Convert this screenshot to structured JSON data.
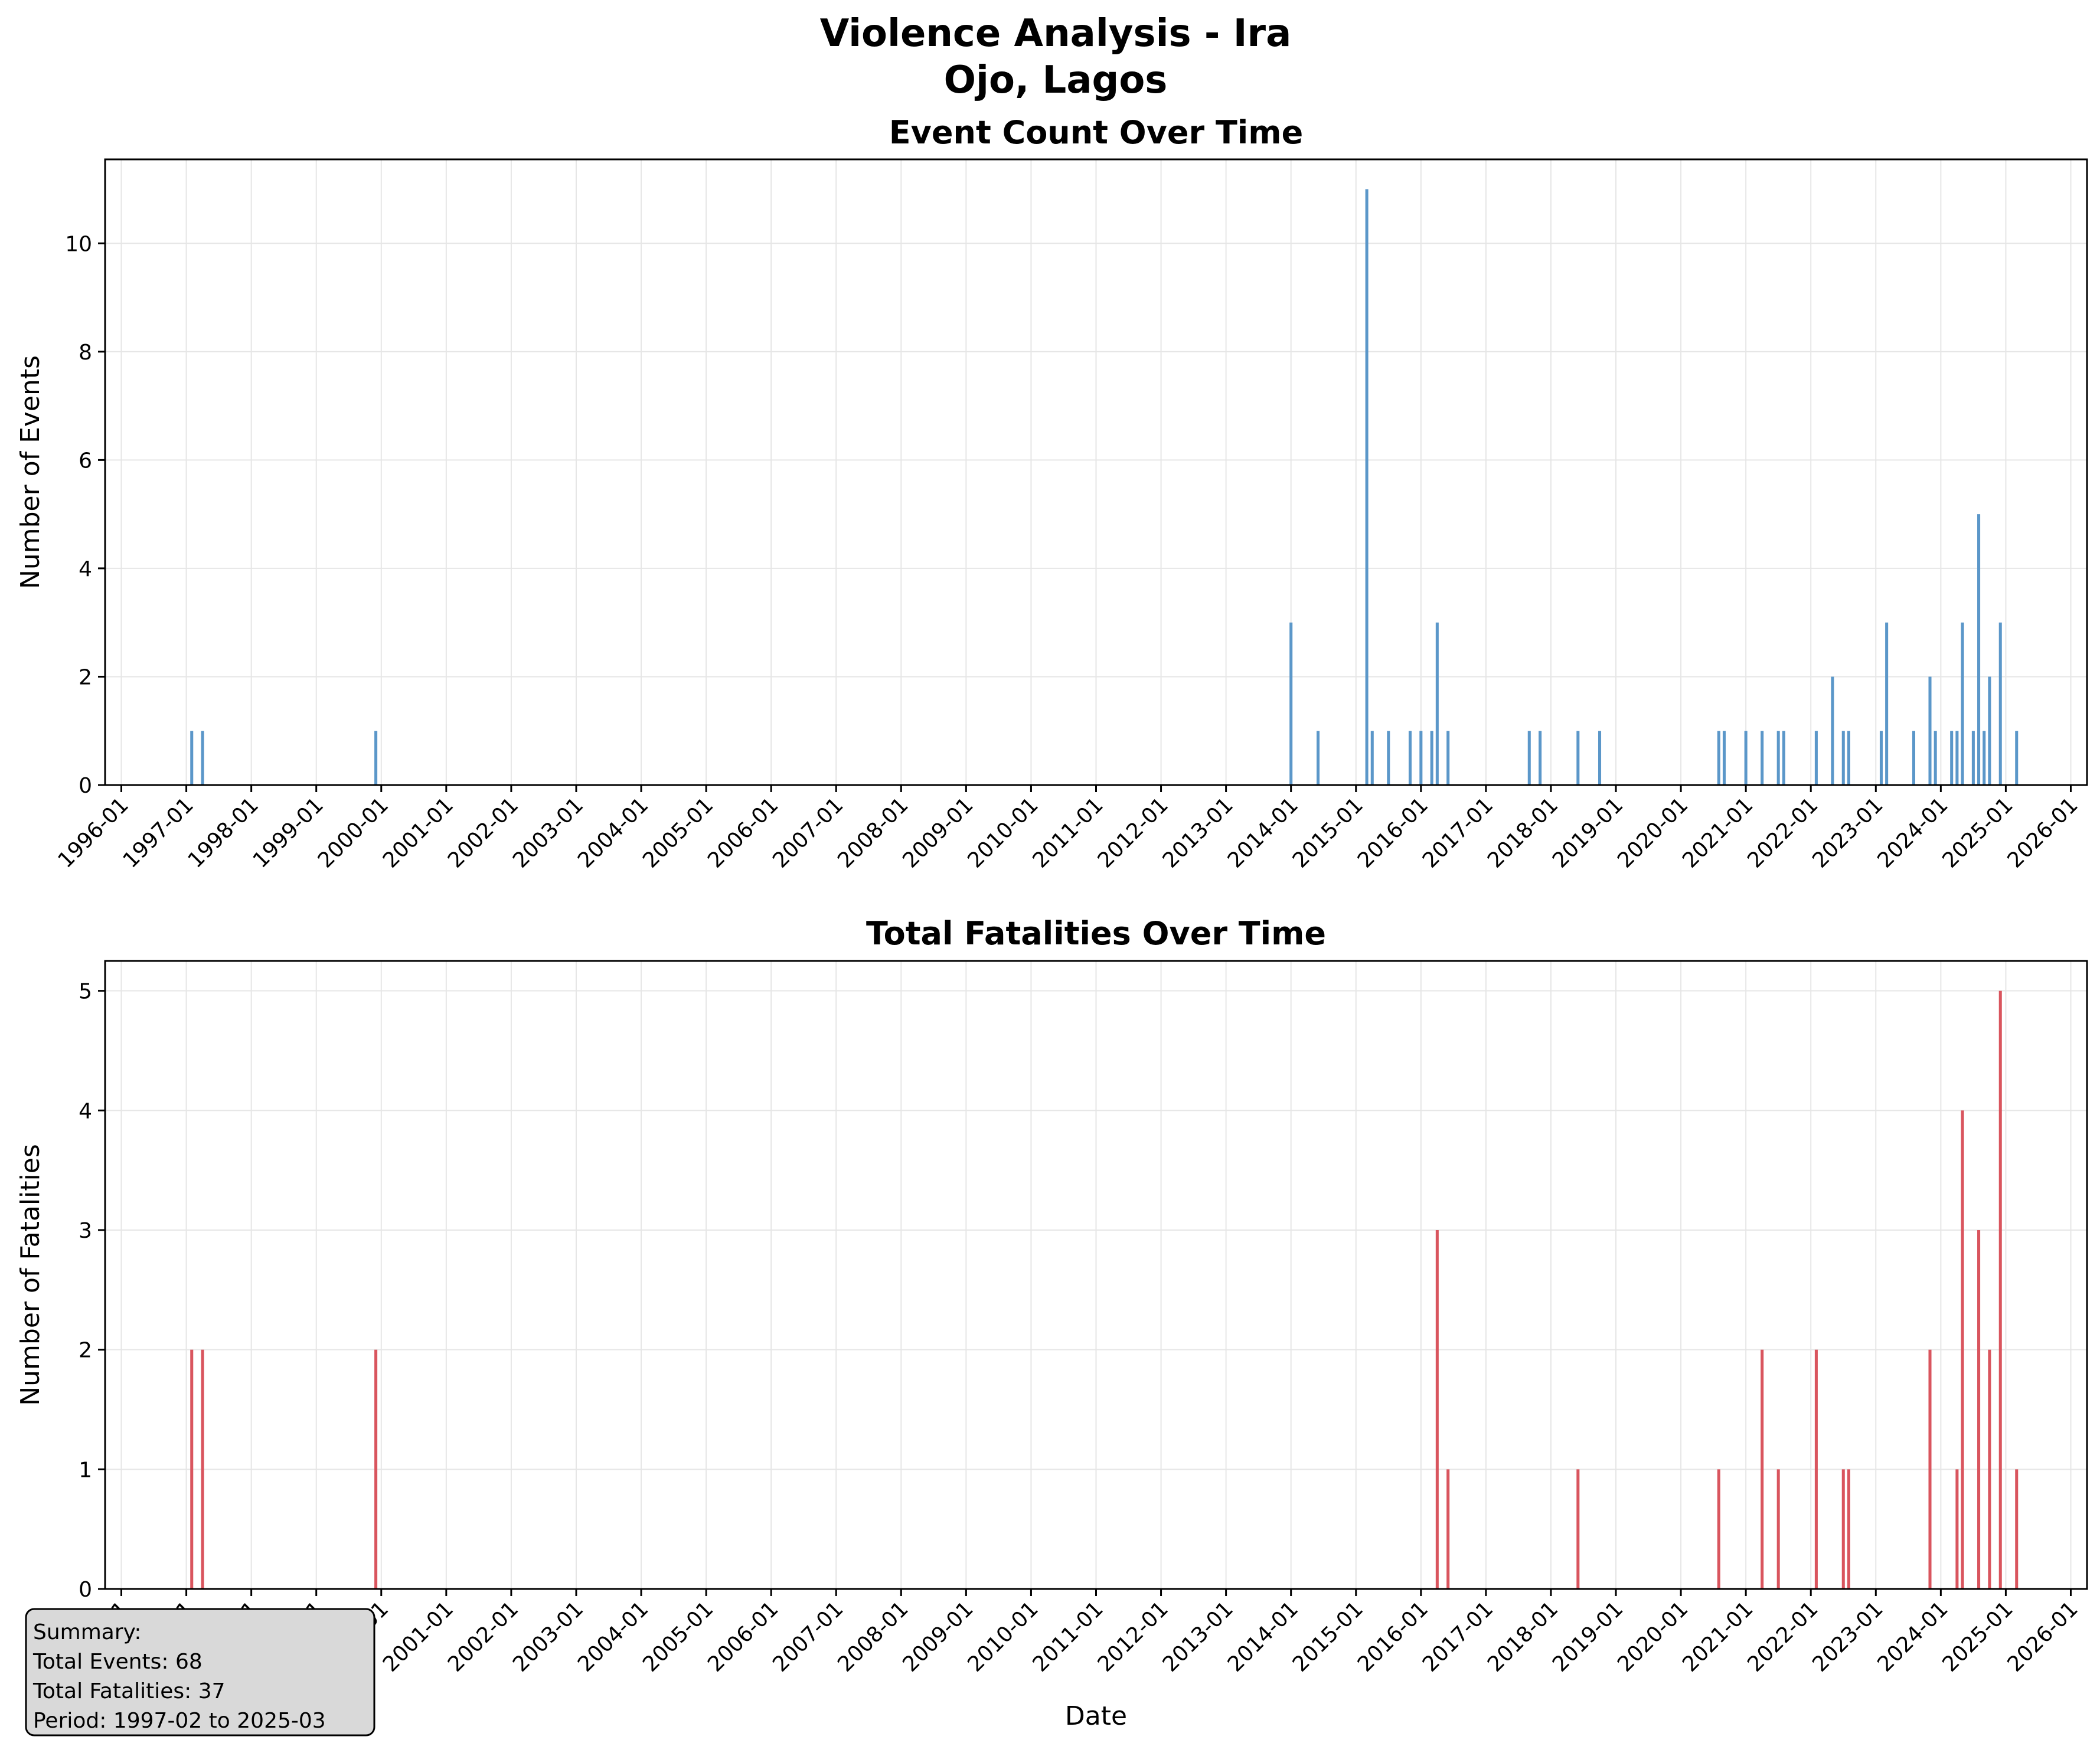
{
  "figure": {
    "title_line1": "Violence Analysis - Ira",
    "title_line2": "Ojo, Lagos"
  },
  "summary": {
    "line1": "Summary:",
    "line2": "Total Events: 68",
    "line3": "Total Fatalities: 37",
    "line4": "Period: 1997-02 to 2025-03"
  },
  "colors": {
    "events_bar": "#5b97c9",
    "fatalities_bar": "#d9555e",
    "grid": "#e6e6e6",
    "summary_box_fill": "#d9d9d9"
  },
  "chart_data": [
    {
      "type": "bar",
      "title": "Event Count Over Time",
      "xlabel": "",
      "ylabel": "Number of Events",
      "x_axis": "date",
      "xlim": [
        "1995-10",
        "2026-04"
      ],
      "ylim": [
        0,
        11.55
      ],
      "yticks": [
        0,
        2,
        4,
        6,
        8,
        10
      ],
      "xtick_labels": [
        "1996-01",
        "1997-01",
        "1998-01",
        "1999-01",
        "2000-01",
        "2001-01",
        "2002-01",
        "2003-01",
        "2004-01",
        "2005-01",
        "2006-01",
        "2007-01",
        "2008-01",
        "2009-01",
        "2010-01",
        "2011-01",
        "2012-01",
        "2013-01",
        "2014-01",
        "2015-01",
        "2016-01",
        "2017-01",
        "2018-01",
        "2019-01",
        "2020-01",
        "2021-01",
        "2022-01",
        "2023-01",
        "2024-01",
        "2025-01",
        "2026-01"
      ],
      "grid": true,
      "series": [
        {
          "x": [
            "1997-02",
            "1997-04",
            "1999-12",
            "2014-01",
            "2014-06",
            "2015-03",
            "2015-04",
            "2015-07",
            "2015-11",
            "2016-01",
            "2016-03",
            "2016-04",
            "2016-06",
            "2017-09",
            "2017-11",
            "2018-06",
            "2018-10",
            "2020-08",
            "2020-09",
            "2021-01",
            "2021-04",
            "2021-07",
            "2021-08",
            "2022-02",
            "2022-05",
            "2022-07",
            "2022-08",
            "2023-02",
            "2023-03",
            "2023-08",
            "2023-11",
            "2023-12",
            "2024-03",
            "2024-04",
            "2024-05",
            "2024-07",
            "2024-08",
            "2024-09",
            "2024-10",
            "2024-12",
            "2025-03"
          ],
          "values": [
            1,
            1,
            1,
            3,
            1,
            11,
            1,
            1,
            1,
            1,
            1,
            3,
            1,
            1,
            1,
            1,
            1,
            1,
            1,
            1,
            1,
            1,
            1,
            1,
            2,
            1,
            1,
            1,
            3,
            1,
            2,
            1,
            1,
            1,
            3,
            1,
            5,
            1,
            2,
            3,
            1
          ]
        }
      ]
    },
    {
      "type": "bar",
      "title": "Total Fatalities Over Time",
      "xlabel": "Date",
      "ylabel": "Number of Fatalities",
      "x_axis": "date",
      "xlim": [
        "1995-10",
        "2026-04"
      ],
      "ylim": [
        0,
        5.25
      ],
      "yticks": [
        0,
        1,
        2,
        3,
        4,
        5
      ],
      "xtick_labels": [
        "1996-01",
        "1997-01",
        "1998-01",
        "1999-01",
        "2000-01",
        "2001-01",
        "2002-01",
        "2003-01",
        "2004-01",
        "2005-01",
        "2006-01",
        "2007-01",
        "2008-01",
        "2009-01",
        "2010-01",
        "2011-01",
        "2012-01",
        "2013-01",
        "2014-01",
        "2015-01",
        "2016-01",
        "2017-01",
        "2018-01",
        "2019-01",
        "2020-01",
        "2021-01",
        "2022-01",
        "2023-01",
        "2024-01",
        "2025-01",
        "2026-01"
      ],
      "grid": true,
      "series": [
        {
          "x": [
            "1997-02",
            "1997-04",
            "1999-12",
            "2016-04",
            "2016-06",
            "2018-06",
            "2020-08",
            "2021-04",
            "2021-07",
            "2022-02",
            "2022-07",
            "2022-08",
            "2023-11",
            "2024-04",
            "2024-05",
            "2024-08",
            "2024-10",
            "2024-12",
            "2025-03"
          ],
          "values": [
            2,
            2,
            2,
            3,
            1,
            1,
            1,
            2,
            1,
            2,
            1,
            1,
            2,
            1,
            4,
            3,
            2,
            5,
            1
          ]
        }
      ]
    }
  ]
}
